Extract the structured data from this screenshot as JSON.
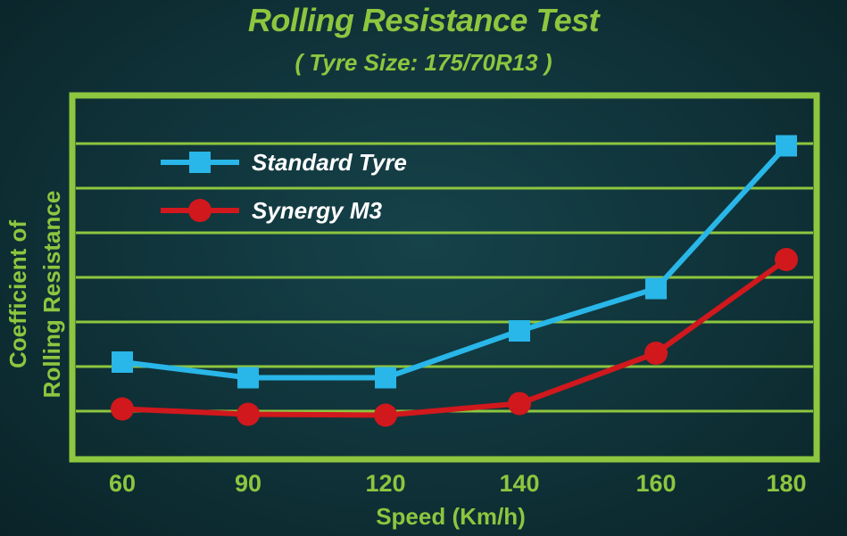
{
  "chart_data": {
    "type": "line",
    "title": "Rolling Resistance Test",
    "subtitle": "( Tyre Size: 175/70R13 )",
    "xlabel": "Speed (Km/h)",
    "ylabel_line1": "Coefficient of",
    "ylabel_line2": "Rolling Resistance",
    "categories": [
      "60",
      "90",
      "120",
      "140",
      "160",
      "180"
    ],
    "ylim": [
      0,
      8
    ],
    "grid": true,
    "legend_position": "top-left",
    "series": [
      {
        "name": "Standard Tyre",
        "color": "#29b6e8",
        "marker": "square",
        "values": [
          2.1,
          1.75,
          1.75,
          2.8,
          3.75,
          6.95
        ]
      },
      {
        "name": "Synergy M3",
        "color": "#d0181d",
        "marker": "circle",
        "values": [
          1.05,
          0.93,
          0.91,
          1.17,
          2.3,
          4.4
        ]
      }
    ]
  }
}
